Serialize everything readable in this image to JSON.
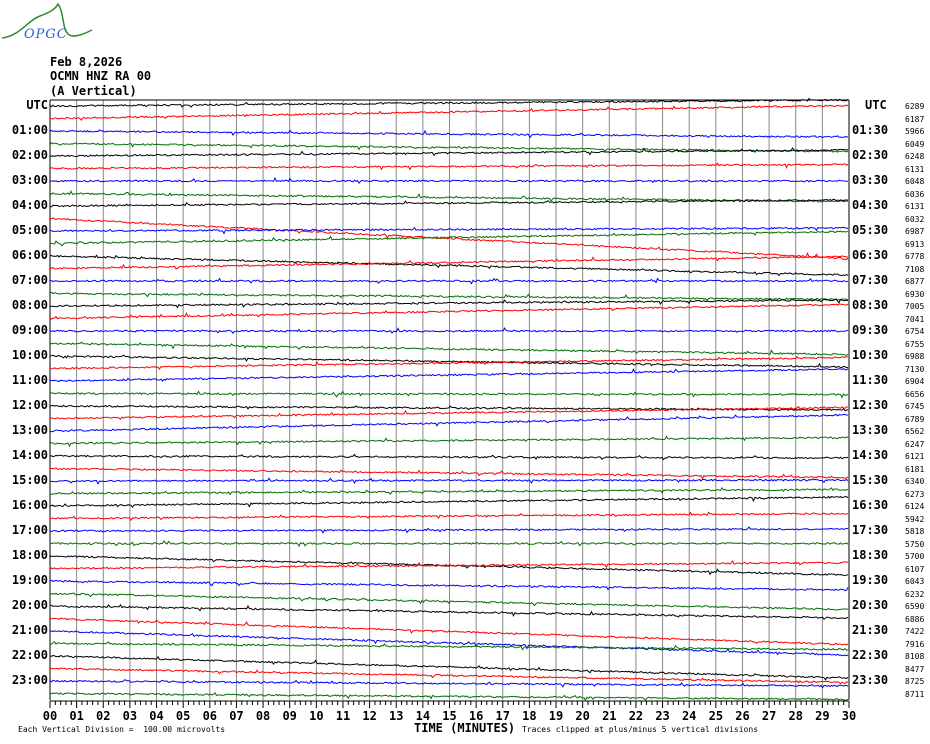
{
  "logo": {
    "text": "OPGC"
  },
  "header": {
    "date": "Feb 8,2026",
    "station": "OCMN HNZ RA 00",
    "component": "(A Vertical)"
  },
  "chart_data": {
    "type": "line",
    "left_labels": [
      "UTC",
      "01:00",
      "02:00",
      "03:00",
      "04:00",
      "05:00",
      "06:00",
      "07:00",
      "08:00",
      "09:00",
      "10:00",
      "11:00",
      "12:00",
      "13:00",
      "14:00",
      "15:00",
      "16:00",
      "17:00",
      "18:00",
      "19:00",
      "20:00",
      "21:00",
      "22:00",
      "23:00"
    ],
    "right_labels": [
      "UTC",
      "01:30",
      "02:30",
      "03:30",
      "04:30",
      "05:30",
      "06:30",
      "07:30",
      "08:30",
      "09:30",
      "10:30",
      "11:30",
      "12:30",
      "13:30",
      "14:30",
      "15:30",
      "16:30",
      "17:30",
      "18:30",
      "19:30",
      "20:30",
      "21:30",
      "22:30",
      "23:30"
    ],
    "trace_values": [
      6289,
      6187,
      5966,
      6049,
      6248,
      6131,
      6048,
      6036,
      6131,
      6032,
      6987,
      6913,
      6778,
      7108,
      6877,
      6930,
      7005,
      7041,
      6754,
      6755,
      6988,
      7130,
      6904,
      6656,
      6745,
      6789,
      6562,
      6247,
      6121,
      6181,
      6340,
      6273,
      6124,
      5942,
      5818,
      5750,
      5700,
      6107,
      6043,
      6232,
      6590,
      6886,
      7422,
      7916,
      8108,
      8477,
      8725,
      8711
    ],
    "trace_colors": [
      "#000000",
      "#ff0000",
      "#0000ff",
      "#007000"
    ],
    "x_ticks": [
      "00",
      "01",
      "02",
      "03",
      "04",
      "05",
      "06",
      "07",
      "08",
      "09",
      "10",
      "11",
      "12",
      "13",
      "14",
      "15",
      "16",
      "17",
      "18",
      "19",
      "20",
      "21",
      "22",
      "23",
      "24",
      "25",
      "26",
      "27",
      "28",
      "29",
      "30"
    ],
    "xlabel": "TIME (MINUTES)",
    "xlim": [
      0,
      30
    ],
    "grid": true,
    "scale_note": "Each Vertical Division =  100.00 microvolts",
    "clip_note": "Traces clipped at plus/minus 5 vertical divisions"
  }
}
